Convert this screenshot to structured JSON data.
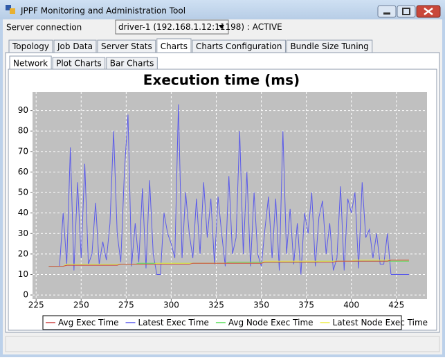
{
  "window": {
    "title": "JPPF Monitoring and Administration Tool"
  },
  "server_label": "Server connection",
  "server_value": "driver-1 (192.168.1.12:11198) : ACTIVE",
  "tabs": [
    "Topology",
    "Job Data",
    "Server Stats",
    "Charts",
    "Charts Configuration",
    "Bundle Size Tuning"
  ],
  "subtabs": [
    "Network",
    "Plot Charts",
    "Bar Charts"
  ],
  "chart_data": {
    "type": "line",
    "title": "Execution time (ms)",
    "x": [
      232,
      234,
      236,
      238,
      240,
      242,
      244,
      246,
      248,
      250,
      252,
      254,
      256,
      258,
      260,
      262,
      264,
      266,
      268,
      270,
      272,
      274,
      276,
      278,
      280,
      282,
      284,
      286,
      288,
      290,
      292,
      294,
      296,
      298,
      300,
      302,
      304,
      306,
      308,
      310,
      312,
      314,
      316,
      318,
      320,
      322,
      324,
      326,
      328,
      330,
      332,
      334,
      336,
      338,
      340,
      342,
      344,
      346,
      348,
      350,
      352,
      354,
      356,
      358,
      360,
      362,
      364,
      366,
      368,
      370,
      372,
      374,
      376,
      378,
      380,
      382,
      384,
      386,
      388,
      390,
      392,
      394,
      396,
      398,
      400,
      402,
      404,
      406,
      408,
      410,
      412,
      414,
      416,
      418,
      420,
      422,
      424,
      426,
      428,
      430,
      432
    ],
    "series": [
      {
        "name": "Latest Exec Time",
        "color": "#5b5bea",
        "values": [
          14,
          14,
          14,
          14,
          40,
          15,
          72,
          12,
          55,
          18,
          64,
          15,
          20,
          45,
          15,
          26,
          17,
          35,
          80,
          30,
          16,
          60,
          88,
          14,
          35,
          16,
          52,
          13,
          56,
          20,
          10,
          10,
          40,
          30,
          25,
          18,
          93,
          18,
          50,
          30,
          18,
          47,
          20,
          55,
          28,
          47,
          15,
          48,
          30,
          14,
          58,
          20,
          28,
          80,
          20,
          60,
          14,
          50,
          20,
          14,
          32,
          48,
          18,
          47,
          12,
          80,
          20,
          42,
          15,
          35,
          10,
          40,
          30,
          50,
          14,
          38,
          46,
          20,
          35,
          12,
          18,
          53,
          12,
          47,
          40,
          50,
          13,
          55,
          28,
          32,
          18,
          30,
          15,
          15,
          30,
          10,
          10,
          10,
          10,
          10,
          10
        ]
      },
      {
        "name": "Avg Node Exec Time",
        "color": "#55dd55",
        "values": [
          14,
          14,
          14,
          14,
          14,
          15,
          15,
          15,
          15,
          15,
          15,
          15,
          15,
          15,
          15,
          15,
          15,
          15,
          15,
          15,
          15,
          15,
          15,
          15,
          15,
          15.5,
          15.5,
          15.5,
          15.5,
          15.5,
          15.5,
          15.5,
          15.5,
          15.5,
          15.5,
          15.5,
          15.5,
          15.5,
          15.5,
          15.5,
          15.5,
          15.5,
          15.5,
          15.5,
          15.5,
          15.5,
          15.5,
          15.5,
          15.5,
          15.5,
          16,
          16,
          16,
          16,
          16,
          16,
          16,
          16,
          16,
          16,
          16,
          16,
          16,
          16,
          16,
          16,
          16,
          16,
          16,
          16,
          16,
          16,
          16,
          16,
          16,
          16.5,
          16.5,
          16.5,
          16.5,
          16.5,
          16.5,
          16.5,
          16.5,
          16.5,
          16.5,
          16.5,
          16.5,
          16.5,
          16.5,
          16.5,
          16.5,
          16.5,
          16.5,
          16.5,
          16.5,
          16.5,
          16.5,
          16.5,
          16.5,
          16.5,
          16.5
        ]
      },
      {
        "name": "Latest Node Exec Time",
        "color": "#eeee44",
        "values": [
          14,
          14,
          14,
          14,
          14,
          15,
          15,
          15,
          15,
          15,
          15,
          15,
          15,
          15,
          15,
          15,
          15,
          15,
          15,
          15,
          15,
          15,
          15,
          15,
          15,
          15,
          15,
          15,
          15,
          15,
          15.5,
          15.5,
          15.5,
          15.5,
          15.5,
          15.5,
          15.5,
          15.5,
          15.5,
          15.5,
          15.5,
          15.5,
          15.5,
          15.5,
          15.5,
          15.5,
          15.5,
          15.5,
          15.5,
          15.5,
          15.5,
          15.5,
          15.5,
          15.5,
          15.5,
          15.5,
          15.5,
          15.5,
          15.5,
          15.5,
          16.5,
          16.5,
          16.5,
          16.5,
          16.5,
          16.5,
          16.5,
          16.5,
          16.5,
          16.5,
          16.5,
          16.5,
          16.5,
          16.5,
          16.5,
          16.5,
          16.5,
          16.5,
          16.5,
          16.5,
          16.5,
          16.5,
          16.5,
          16.5,
          16.5,
          17,
          17,
          17,
          17,
          17,
          17,
          17,
          17,
          17,
          17,
          17,
          17,
          17,
          17,
          17,
          17
        ]
      },
      {
        "name": "Avg Exec Time",
        "color": "#cc4444",
        "values": [
          14,
          14,
          14,
          14,
          14,
          14.5,
          14.5,
          14.5,
          14.5,
          14.5,
          14.5,
          14.5,
          14.5,
          14.5,
          14.5,
          14.5,
          14.5,
          14.5,
          14.5,
          14.5,
          15,
          15,
          15,
          15,
          15,
          15,
          15,
          15,
          15,
          15,
          15,
          15,
          15,
          15,
          15,
          15,
          15,
          15,
          15,
          15,
          15.5,
          15.5,
          15.5,
          15.5,
          15.5,
          15.5,
          15.5,
          15.5,
          15.5,
          15.5,
          15.5,
          15.5,
          15.5,
          15.5,
          15.5,
          15.5,
          15.5,
          15.5,
          15.5,
          15.5,
          16,
          16,
          16,
          16,
          16,
          16,
          16,
          16,
          16,
          16,
          16,
          16,
          16,
          16,
          16,
          16,
          16,
          16,
          16,
          16,
          16.5,
          16.5,
          16.5,
          16.5,
          16.5,
          16.5,
          16.5,
          16.5,
          16.5,
          16.5,
          16.5,
          16.5,
          16.5,
          16.5,
          16.5,
          17,
          17,
          17,
          17,
          17,
          17
        ]
      }
    ],
    "legend_order": [
      "Avg Exec Time",
      "Latest Exec Time",
      "Avg Node Exec Time",
      "Latest Node Exec Time"
    ],
    "xlim": [
      223,
      442
    ],
    "ylim": [
      -2,
      99
    ],
    "xticks": [
      225,
      250,
      275,
      300,
      325,
      350,
      375,
      400,
      425
    ],
    "yticks": [
      0,
      10,
      20,
      30,
      40,
      50,
      60,
      70,
      80,
      90
    ],
    "grid": true,
    "legend": "bottom"
  }
}
